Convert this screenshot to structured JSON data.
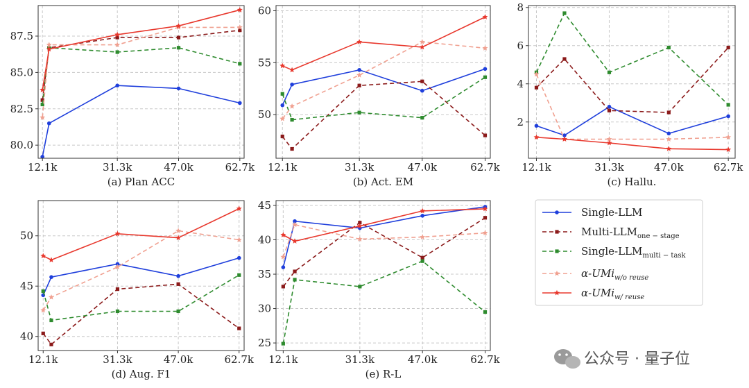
{
  "colors": {
    "single": "#1f3fdc",
    "multi_one": "#8b1a1a",
    "single_multi": "#2e8b2e",
    "umi_wo": "#f0a090",
    "umi_w": "#e8382d"
  },
  "chart_data": [
    {
      "type": "line",
      "caption": "(a) Plan ACC",
      "x": [
        12.1,
        13.8,
        31.3,
        47.0,
        62.7
      ],
      "xticks": [
        12.1,
        31.3,
        47.0,
        62.7
      ],
      "xtick_labels": [
        "12.1k",
        "31.3k",
        "47.0k",
        "62.7k"
      ],
      "xlim": [
        11.0,
        63.8
      ],
      "ylim": [
        79.1,
        89.6
      ],
      "yticks": [
        80.0,
        82.5,
        85.0,
        87.5
      ],
      "ytick_labels": [
        "80.0",
        "82.5",
        "85.0",
        "87.5"
      ],
      "series": [
        {
          "key": "single",
          "values": [
            79.2,
            81.5,
            84.1,
            83.9,
            82.9
          ]
        },
        {
          "key": "multi_one",
          "values": [
            83.1,
            86.7,
            87.4,
            87.4,
            87.9
          ]
        },
        {
          "key": "single_multi",
          "values": [
            82.8,
            86.7,
            86.4,
            86.7,
            85.6
          ]
        },
        {
          "key": "umi_wo",
          "values": [
            81.9,
            86.9,
            86.9,
            88.1,
            88.1
          ]
        },
        {
          "key": "umi_w",
          "values": [
            83.8,
            86.6,
            87.6,
            88.2,
            89.3
          ]
        }
      ]
    },
    {
      "type": "line",
      "caption": "(b) Act. EM",
      "x": [
        12.1,
        14.5,
        31.3,
        47.0,
        62.7
      ],
      "xticks": [
        12.1,
        31.3,
        47.0,
        62.7
      ],
      "xtick_labels": [
        "12.1k",
        "31.3k",
        "47.0k",
        "62.7k"
      ],
      "xlim": [
        10.5,
        64.0
      ],
      "ylim": [
        45.8,
        60.5
      ],
      "yticks": [
        50,
        55,
        60
      ],
      "ytick_labels": [
        "50",
        "55",
        "60"
      ],
      "series": [
        {
          "key": "single",
          "values": [
            50.9,
            52.9,
            54.3,
            52.3,
            54.4
          ]
        },
        {
          "key": "multi_one",
          "values": [
            47.9,
            46.7,
            52.8,
            53.2,
            48.0
          ]
        },
        {
          "key": "single_multi",
          "values": [
            52.0,
            49.5,
            50.2,
            49.7,
            53.6
          ]
        },
        {
          "key": "umi_wo",
          "values": [
            49.6,
            50.8,
            53.8,
            57.0,
            56.4
          ]
        },
        {
          "key": "umi_w",
          "values": [
            54.7,
            54.3,
            57.0,
            56.5,
            59.4
          ]
        }
      ]
    },
    {
      "type": "line",
      "caption": "(c) Hallu.",
      "x": [
        12.1,
        19.5,
        31.3,
        47.0,
        62.7
      ],
      "xticks": [
        12.1,
        31.3,
        47.0,
        62.7
      ],
      "xtick_labels": [
        "12.1k",
        "31.3k",
        "47.0k",
        "62.7k"
      ],
      "xlim": [
        10.0,
        64.5
      ],
      "ylim": [
        0.1,
        8.1
      ],
      "yticks": [
        2,
        4,
        6,
        8
      ],
      "ytick_labels": [
        "2",
        "4",
        "6",
        "8"
      ],
      "series": [
        {
          "key": "single",
          "values": [
            1.8,
            1.3,
            2.8,
            1.4,
            2.3
          ]
        },
        {
          "key": "multi_one",
          "values": [
            3.8,
            5.3,
            2.6,
            2.5,
            5.9
          ]
        },
        {
          "key": "single_multi",
          "values": [
            4.6,
            7.7,
            4.6,
            5.9,
            2.9
          ]
        },
        {
          "key": "umi_wo",
          "values": [
            4.5,
            1.1,
            1.1,
            1.1,
            1.2
          ]
        },
        {
          "key": "umi_w",
          "values": [
            1.2,
            1.1,
            0.9,
            0.6,
            0.55
          ]
        }
      ]
    },
    {
      "type": "line",
      "caption": "(d) Aug. F1",
      "x": [
        12.1,
        14.2,
        31.3,
        47.0,
        62.7
      ],
      "xticks": [
        12.1,
        31.3,
        47.0,
        62.7
      ],
      "xtick_labels": [
        "12.1k",
        "31.3k",
        "47.0k",
        "62.7k"
      ],
      "xlim": [
        10.8,
        64.0
      ],
      "ylim": [
        38.6,
        53.5
      ],
      "yticks": [
        40,
        45,
        50
      ],
      "ytick_labels": [
        "40",
        "45",
        "50"
      ],
      "series": [
        {
          "key": "single",
          "values": [
            44.1,
            45.9,
            47.2,
            46.0,
            47.8
          ]
        },
        {
          "key": "multi_one",
          "values": [
            40.3,
            39.2,
            44.7,
            45.2,
            40.8
          ]
        },
        {
          "key": "single_multi",
          "values": [
            44.5,
            41.6,
            42.5,
            42.5,
            46.1
          ]
        },
        {
          "key": "umi_wo",
          "values": [
            42.6,
            43.9,
            46.9,
            50.5,
            49.6
          ]
        },
        {
          "key": "umi_w",
          "values": [
            48.0,
            47.6,
            50.2,
            49.8,
            52.7
          ]
        }
      ]
    },
    {
      "type": "line",
      "caption": "(e) R-L",
      "x": [
        12.1,
        15.0,
        31.3,
        47.0,
        62.7
      ],
      "xticks": [
        12.1,
        31.3,
        47.0,
        62.7
      ],
      "xtick_labels": [
        "12.1k",
        "31.3k",
        "47.0k",
        "62.7k"
      ],
      "xlim": [
        10.3,
        64.0
      ],
      "ylim": [
        23.9,
        45.7
      ],
      "yticks": [
        25,
        30,
        35,
        40,
        45
      ],
      "ytick_labels": [
        "25",
        "30",
        "35",
        "40",
        "45"
      ],
      "series": [
        {
          "key": "single",
          "values": [
            36.0,
            42.7,
            41.7,
            43.5,
            44.8
          ]
        },
        {
          "key": "multi_one",
          "values": [
            33.2,
            35.4,
            42.5,
            37.4,
            43.2
          ]
        },
        {
          "key": "single_multi",
          "values": [
            24.9,
            34.2,
            33.2,
            36.9,
            29.5
          ]
        },
        {
          "key": "umi_wo",
          "values": [
            37.5,
            42.2,
            40.1,
            40.4,
            41.0
          ]
        },
        {
          "key": "umi_w",
          "values": [
            40.7,
            39.8,
            42.0,
            44.2,
            44.5
          ]
        }
      ]
    }
  ],
  "legend": [
    {
      "key": "single",
      "label": "Single-LLM",
      "sub": ""
    },
    {
      "key": "multi_one",
      "label": "Multi-LLM",
      "sub": "one − stage"
    },
    {
      "key": "single_multi",
      "label": "Single-LLM",
      "sub": "multi − task"
    },
    {
      "key": "umi_wo",
      "label": "α-UMi",
      "sub": "w/o reuse"
    },
    {
      "key": "umi_w",
      "label": "α-UMi",
      "sub": "w/ reuse"
    }
  ],
  "watermark": "公众号 · 量子位"
}
